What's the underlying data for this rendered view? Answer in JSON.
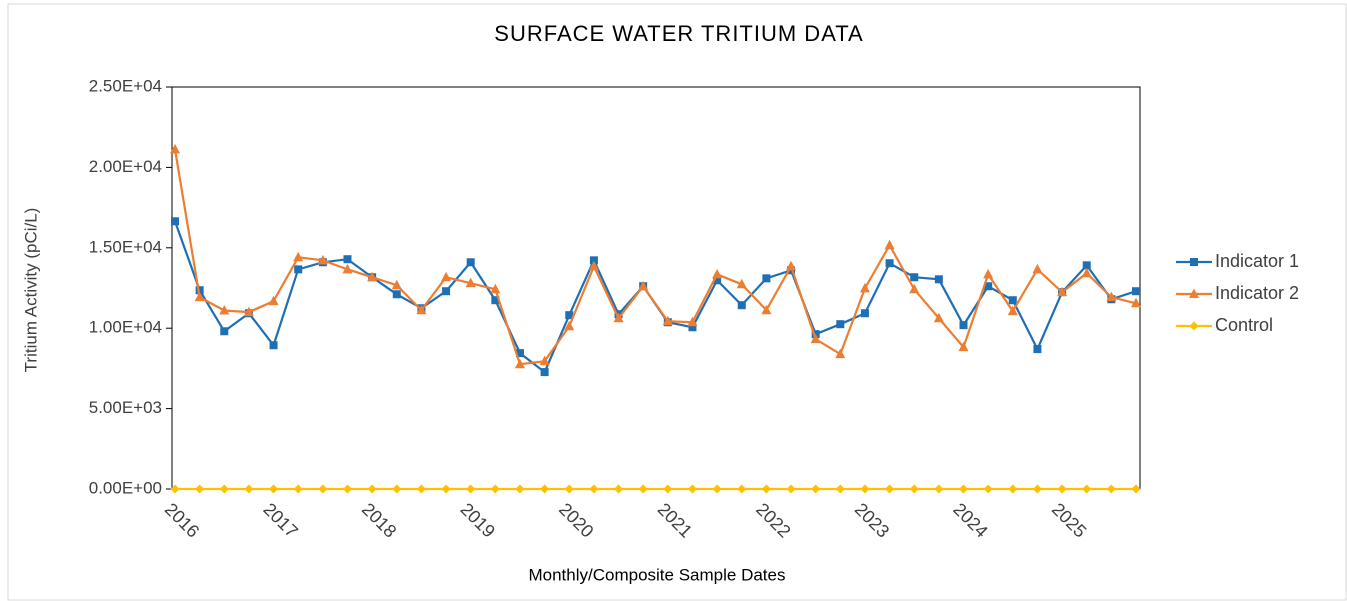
{
  "chart_data": {
    "type": "line",
    "title": "SURFACE WATER TRITIUM DATA",
    "x_label": "Monthly/Composite Sample Dates",
    "y_label": "Tritium Activity (pCi/L)",
    "categories": [
      "2016",
      null,
      null,
      null,
      "2017",
      null,
      null,
      null,
      "2018",
      null,
      null,
      null,
      "2019",
      null,
      null,
      null,
      "2020",
      null,
      null,
      null,
      "2021",
      null,
      null,
      null,
      "2022",
      null,
      null,
      null,
      "2023",
      null,
      null,
      null,
      "2024",
      null,
      null,
      null,
      "2025",
      null,
      null,
      null
    ],
    "series": [
      {
        "name": "Indicator 1",
        "color": "#1f6fb5",
        "marker": "square",
        "values": [
          16650,
          12360,
          9810,
          10930,
          8940,
          13660,
          14100,
          14290,
          13170,
          12110,
          11240,
          12300,
          14100,
          11740,
          8450,
          7270,
          10810,
          14220,
          10870,
          12610,
          10370,
          10060,
          12980,
          11430,
          13100,
          13600,
          9630,
          10250,
          10930,
          14040,
          13170,
          13040,
          10190,
          12610,
          11740,
          8700,
          12240,
          13910,
          11800,
          12300
        ]
      },
      {
        "name": "Indicator 2",
        "color": "#ed7d31",
        "marker": "triangle",
        "values": [
          21120,
          11930,
          11100,
          11000,
          11680,
          14410,
          14220,
          13660,
          13170,
          12670,
          11120,
          13170,
          12800,
          12420,
          7760,
          7950,
          10120,
          13850,
          10620,
          12610,
          10430,
          10370,
          13350,
          12730,
          11120,
          13850,
          9320,
          8390,
          12480,
          15160,
          12420,
          10620,
          8820,
          13350,
          11060,
          13660,
          12240,
          13420,
          11930,
          11550
        ]
      },
      {
        "name": "Control",
        "color": "#ffc000",
        "marker": "diamond",
        "values": [
          0,
          0,
          0,
          0,
          0,
          0,
          0,
          0,
          0,
          0,
          0,
          0,
          0,
          0,
          0,
          0,
          0,
          0,
          0,
          0,
          0,
          0,
          0,
          0,
          0,
          0,
          0,
          0,
          0,
          0,
          0,
          0,
          0,
          0,
          0,
          0,
          0,
          0,
          0,
          0
        ]
      }
    ],
    "ylim": [
      0,
      25000
    ],
    "yticks": [
      {
        "value": 0,
        "label": "0.00E+00"
      },
      {
        "value": 5000,
        "label": "5.00E+03"
      },
      {
        "value": 10000,
        "label": "1.00E+04"
      },
      {
        "value": 15000,
        "label": "1.50E+04"
      },
      {
        "value": 20000,
        "label": "2.00E+04"
      },
      {
        "value": 25000,
        "label": "2.50E+04"
      }
    ],
    "grid": false,
    "legend": "right"
  }
}
